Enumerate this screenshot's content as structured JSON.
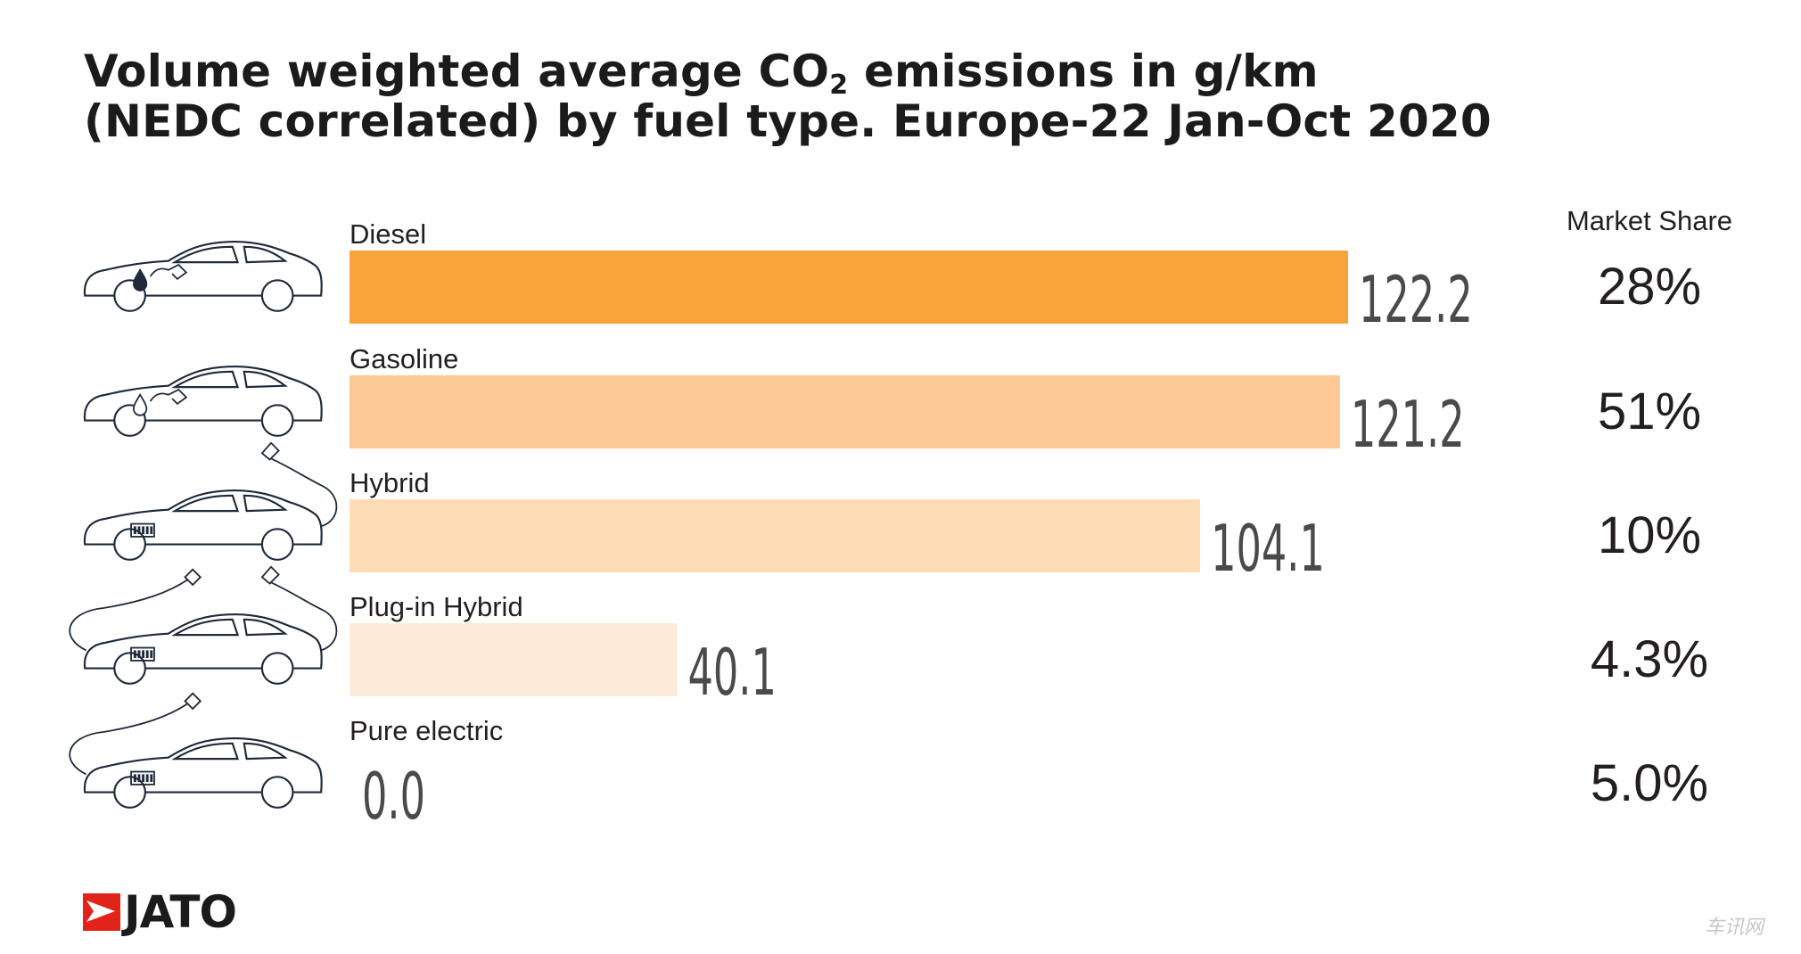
{
  "title": {
    "line1_before": "Volume weighted average CO",
    "line1_sub": "2",
    "line1_after": " emissions in g/km",
    "line2": "(NEDC correlated) by fuel type. Europe-22 Jan-Oct 2020"
  },
  "share_header": "Market Share",
  "logo": {
    "text": "JATO",
    "color": "#e2231a"
  },
  "watermark": "车讯网",
  "chart_data": {
    "type": "bar",
    "orientation": "horizontal",
    "title": "Volume weighted average CO2 emissions in g/km (NEDC correlated) by fuel type. Europe-22 Jan-Oct 2020",
    "categories": [
      "Diesel",
      "Gasoline",
      "Hybrid",
      "Plug-in Hybrid",
      "Pure electric"
    ],
    "values": [
      122.2,
      121.2,
      104.1,
      40.1,
      0.0
    ],
    "value_labels": [
      "122.2",
      "121.2",
      "104.1",
      "40.1",
      "0.0"
    ],
    "market_share": [
      "28%",
      "51%",
      "10%",
      "4.3%",
      "5.0%"
    ],
    "bar_colors": [
      "#f9a43a",
      "#fcc893",
      "#fddcb6",
      "#fdebd9",
      "#fdf3e8"
    ],
    "icons": [
      "diesel-car-icon",
      "gasoline-car-icon",
      "hybrid-car-icon",
      "plug-in-hybrid-car-icon",
      "electric-car-icon"
    ],
    "xlim": [
      0,
      122.2
    ],
    "grid": false,
    "legend": "none"
  }
}
